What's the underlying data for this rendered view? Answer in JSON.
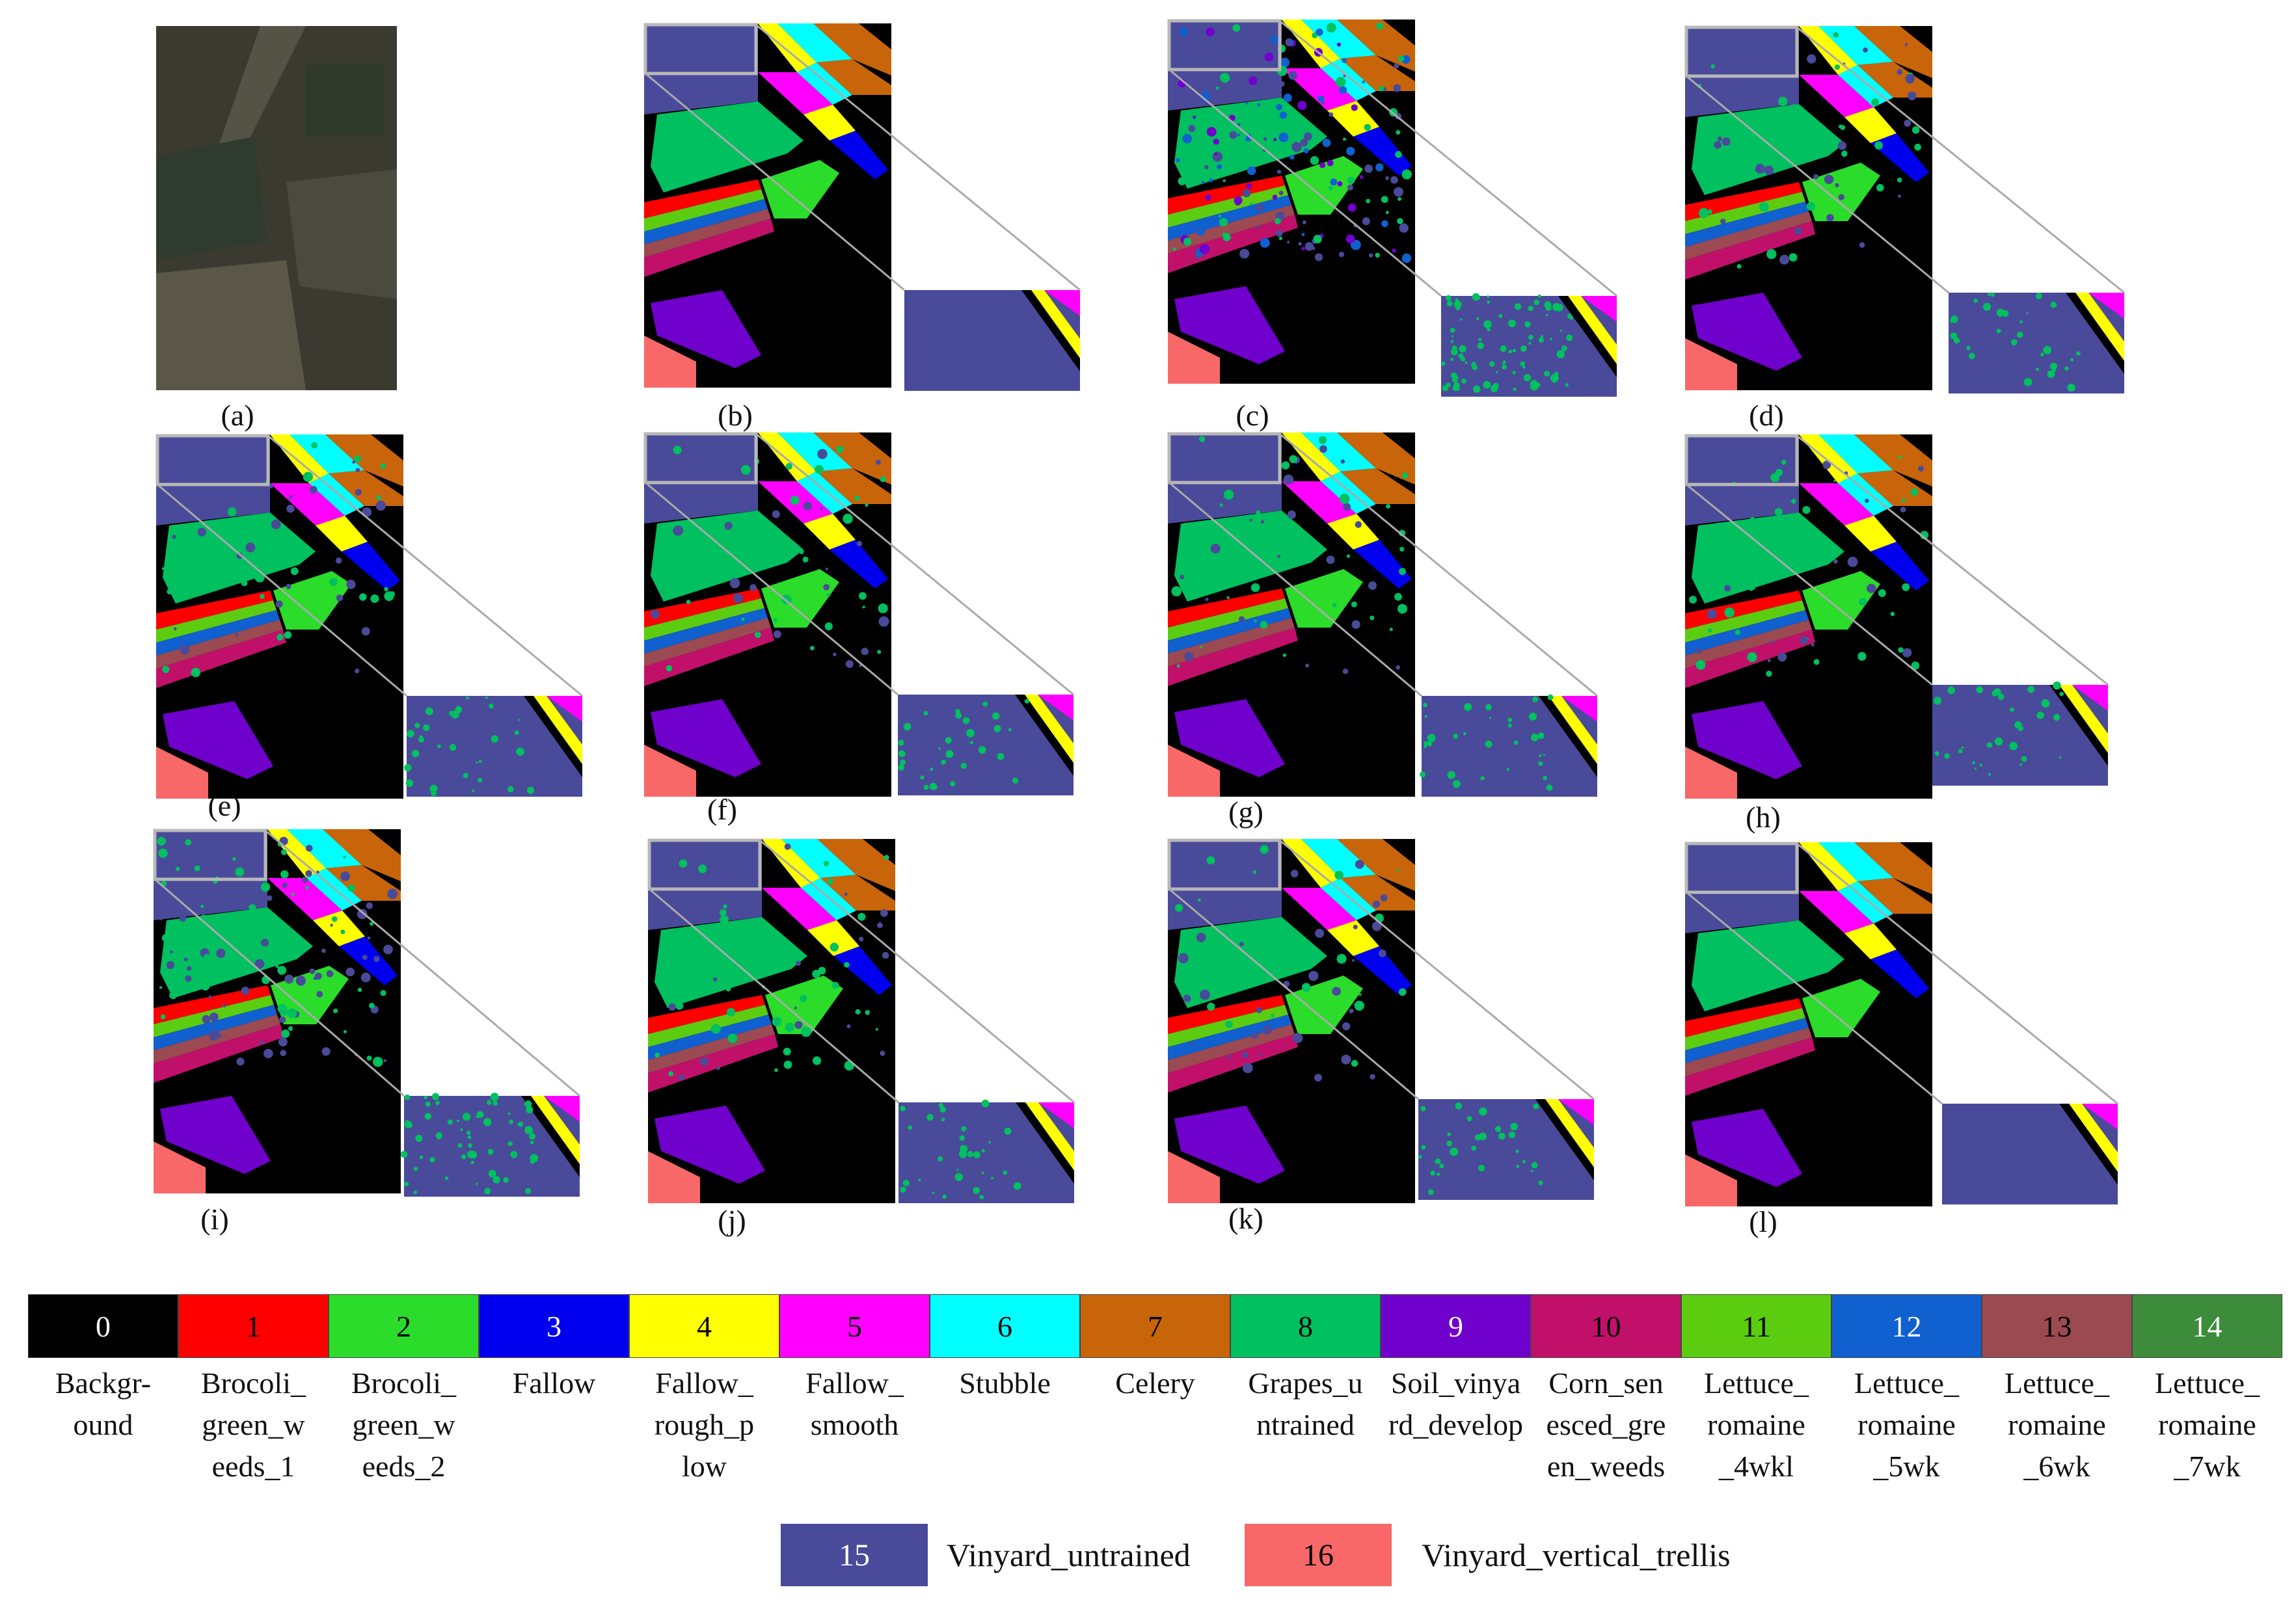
{
  "panels": [
    {
      "id": "a",
      "label": "(a)",
      "kind": "rgb"
    },
    {
      "id": "b",
      "label": "(b)",
      "kind": "map",
      "noise": 0
    },
    {
      "id": "c",
      "label": "(c)",
      "kind": "map",
      "noise": 3
    },
    {
      "id": "d",
      "label": "(d)",
      "kind": "map",
      "noise": 1
    },
    {
      "id": "e",
      "label": "(e)",
      "kind": "map",
      "noise": 1
    },
    {
      "id": "f",
      "label": "(f)",
      "kind": "map",
      "noise": 1
    },
    {
      "id": "g",
      "label": "(g)",
      "kind": "map",
      "noise": 1
    },
    {
      "id": "h",
      "label": "(h)",
      "kind": "map",
      "noise": 1
    },
    {
      "id": "i",
      "label": "(i)",
      "kind": "map",
      "noise": 2
    },
    {
      "id": "j",
      "label": "(j)",
      "kind": "map",
      "noise": 1
    },
    {
      "id": "k",
      "label": "(k)",
      "kind": "map",
      "noise": 1
    },
    {
      "id": "l",
      "label": "(l)",
      "kind": "map",
      "noise": 0
    }
  ],
  "legend": [
    {
      "num": "0",
      "name": "Backgr-\nound",
      "color": "#000000",
      "text_color": "#ffffff"
    },
    {
      "num": "1",
      "name": "Brocoli_\ngreen_w\needs_1",
      "color": "#ff0000",
      "text_color": "#000000"
    },
    {
      "num": "2",
      "name": "Brocoli_\ngreen_w\needs_2",
      "color": "#2bdc2b",
      "text_color": "#000000"
    },
    {
      "num": "3",
      "name": "Fallow",
      "color": "#0000ee",
      "text_color": "#ffffff"
    },
    {
      "num": "4",
      "name": "Fallow_\nrough_p\nlow",
      "color": "#ffff00",
      "text_color": "#000000"
    },
    {
      "num": "5",
      "name": "Fallow_\nsmooth",
      "color": "#ff00ff",
      "text_color": "#000000"
    },
    {
      "num": "6",
      "name": "Stubble",
      "color": "#00ffff",
      "text_color": "#000000"
    },
    {
      "num": "7",
      "name": "Celery",
      "color": "#c8650a",
      "text_color": "#000000"
    },
    {
      "num": "8",
      "name": "Grapes_u\nntrained",
      "color": "#00c060",
      "text_color": "#000000"
    },
    {
      "num": "9",
      "name": "Soil_vinya\nrd_develop",
      "color": "#7000cc",
      "text_color": "#ffffff"
    },
    {
      "num": "10",
      "name": "Corn_sen\nesced_gre\nen_weeds",
      "color": "#c0106a",
      "text_color": "#000000"
    },
    {
      "num": "11",
      "name": "Lettuce_\nromaine\n_4wkl",
      "color": "#5ccc10",
      "text_color": "#000000"
    },
    {
      "num": "12",
      "name": "Lettuce_\nromaine\n_5wk",
      "color": "#1060d0",
      "text_color": "#ffffff"
    },
    {
      "num": "13",
      "name": "Lettuce_\nromaine\n_6wk",
      "color": "#9a4a50",
      "text_color": "#000000"
    },
    {
      "num": "14",
      "name": "Lettuce_\nromaine\n_7wk",
      "color": "#3c8c3c",
      "text_color": "#ffffff"
    },
    {
      "num": "15",
      "name": "Vinyard_untrained",
      "color": "#4a4a9a",
      "text_color": "#ffffff"
    },
    {
      "num": "16",
      "name": "Vinyard_vertical_trellis",
      "color": "#f86868",
      "text_color": "#000000"
    }
  ]
}
